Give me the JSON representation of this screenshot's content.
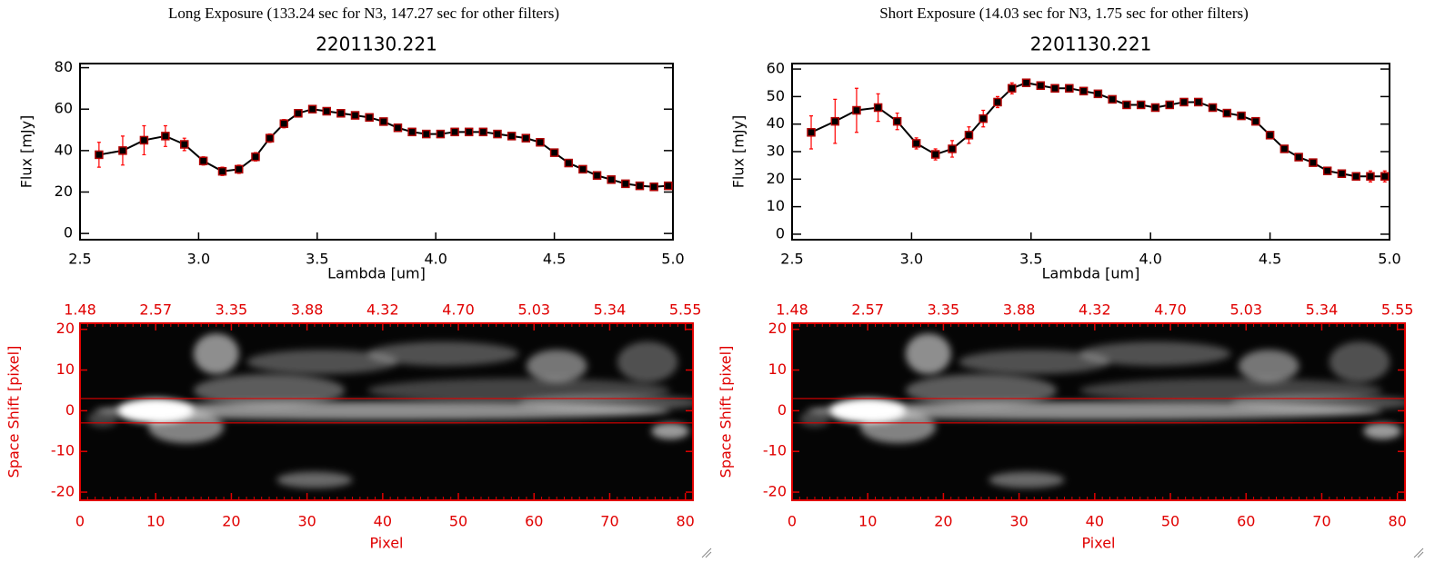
{
  "chart_data": [
    {
      "type": "line",
      "suptitle": "Long Exposure (133.24 sec for N3, 147.27 sec for other filters)",
      "title": "2201130.221",
      "x_label": "Lambda [um]",
      "y_label": "Flux [mJy]",
      "x": [
        2.58,
        2.68,
        2.77,
        2.86,
        2.94,
        3.02,
        3.1,
        3.17,
        3.24,
        3.3,
        3.36,
        3.42,
        3.48,
        3.54,
        3.6,
        3.66,
        3.72,
        3.78,
        3.84,
        3.9,
        3.96,
        4.02,
        4.08,
        4.14,
        4.2,
        4.26,
        4.32,
        4.38,
        4.44,
        4.5,
        4.56,
        4.62,
        4.68,
        4.74,
        4.8,
        4.86,
        4.92,
        4.98
      ],
      "series": [
        {
          "color": "#000000",
          "marker_color": "#b00000",
          "error_color": "#ff0000",
          "values": [
            38,
            40,
            45,
            47,
            43,
            35,
            30,
            31,
            37,
            46,
            53,
            58,
            60,
            59,
            58,
            57,
            56,
            54,
            51,
            49,
            48,
            48,
            49,
            49,
            49,
            48,
            47,
            46,
            44,
            39,
            34,
            31,
            28,
            26,
            24,
            23,
            22.5,
            23
          ],
          "errors": [
            6,
            7,
            7,
            5,
            3,
            2,
            2,
            2,
            2,
            2,
            2,
            1,
            1,
            1,
            1,
            1,
            1,
            1,
            1,
            1,
            1,
            1,
            1,
            1,
            1,
            1,
            1,
            1,
            1,
            1,
            1,
            1,
            1,
            1,
            1,
            1,
            1,
            1
          ]
        }
      ],
      "xlim": [
        2.5,
        5.0
      ],
      "xticks": [
        2.5,
        {
          "value": 3,
          "label": "3.0"
        },
        3.5,
        {
          "value": 4,
          "label": "4.0"
        },
        4.5,
        {
          "value": 5,
          "label": "5.0"
        }
      ],
      "ylim": [
        -3,
        82
      ],
      "yticks": [
        0,
        20,
        40,
        60,
        80
      ]
    },
    {
      "type": "line",
      "suptitle": "Short Exposure (14.03 sec for N3, 1.75 sec for other filters)",
      "title": "2201130.221",
      "x_label": "Lambda [um]",
      "y_label": "Flux [mJy]",
      "x": [
        2.58,
        2.68,
        2.77,
        2.86,
        2.94,
        3.02,
        3.1,
        3.17,
        3.24,
        3.3,
        3.36,
        3.42,
        3.48,
        3.54,
        3.6,
        3.66,
        3.72,
        3.78,
        3.84,
        3.9,
        3.96,
        4.02,
        4.08,
        4.14,
        4.2,
        4.26,
        4.32,
        4.38,
        4.44,
        4.5,
        4.56,
        4.62,
        4.68,
        4.74,
        4.8,
        4.86,
        4.92,
        4.98
      ],
      "series": [
        {
          "color": "#000000",
          "marker_color": "#b00000",
          "error_color": "#ff0000",
          "values": [
            37,
            41,
            45,
            46,
            41,
            33,
            29,
            31,
            36,
            42,
            48,
            53,
            55,
            54,
            53,
            53,
            52,
            51,
            49,
            47,
            47,
            46,
            47,
            48,
            48,
            46,
            44,
            43,
            41,
            36,
            31,
            28,
            26,
            23,
            22,
            21,
            21,
            21
          ],
          "errors": [
            6,
            8,
            8,
            5,
            3,
            2,
            2,
            3,
            3,
            3,
            2,
            2,
            1,
            1,
            1,
            1,
            1,
            1,
            1,
            1,
            1,
            1,
            1,
            1,
            1,
            1,
            1,
            1,
            1,
            1,
            1,
            1,
            1,
            1,
            1,
            1,
            2,
            2
          ]
        }
      ],
      "xlim": [
        2.5,
        5.0
      ],
      "xticks": [
        2.5,
        {
          "value": 3,
          "label": "3.0"
        },
        3.5,
        {
          "value": 4,
          "label": "4.0"
        },
        4.5,
        {
          "value": 5,
          "label": "5.0"
        }
      ],
      "ylim": [
        -2,
        62
      ],
      "yticks": [
        0,
        10,
        20,
        30,
        40,
        50,
        60
      ]
    },
    {
      "type": "image",
      "x_label": "Pixel",
      "y_label": "Space Shift [pixel]",
      "axis_color": "#e00000",
      "xlim": [
        0,
        81
      ],
      "xticks": [
        0,
        10,
        20,
        30,
        40,
        50,
        60,
        70,
        80
      ],
      "x2ticks": [
        {
          "value": 0,
          "label": "1.48"
        },
        {
          "value": 10,
          "label": "2.57"
        },
        {
          "value": 20,
          "label": "3.35"
        },
        {
          "value": 30,
          "label": "3.88"
        },
        {
          "value": 40,
          "label": "4.32"
        },
        {
          "value": 50,
          "label": "4.70"
        },
        {
          "value": 60,
          "label": "5.03"
        },
        {
          "value": 70,
          "label": "5.34"
        },
        {
          "value": 80,
          "label": "5.55"
        }
      ],
      "ylim": [
        -22,
        21.5
      ],
      "yticks": [
        -20,
        -10,
        0,
        10,
        20
      ],
      "hlines": [
        3,
        -3
      ]
    },
    {
      "type": "image",
      "x_label": "Pixel",
      "y_label": "Space Shift [pixel]",
      "axis_color": "#e00000",
      "xlim": [
        0,
        81
      ],
      "xticks": [
        0,
        10,
        20,
        30,
        40,
        50,
        60,
        70,
        80
      ],
      "x2ticks": [
        {
          "value": 0,
          "label": "1.48"
        },
        {
          "value": 10,
          "label": "2.57"
        },
        {
          "value": 20,
          "label": "3.35"
        },
        {
          "value": 30,
          "label": "3.88"
        },
        {
          "value": 40,
          "label": "4.32"
        },
        {
          "value": 50,
          "label": "4.70"
        },
        {
          "value": 60,
          "label": "5.03"
        },
        {
          "value": 70,
          "label": "5.34"
        },
        {
          "value": 80,
          "label": "5.55"
        }
      ],
      "ylim": [
        -22,
        21.5
      ],
      "yticks": [
        -20,
        -10,
        0,
        10,
        20
      ],
      "hlines": [
        3,
        -3
      ]
    }
  ]
}
